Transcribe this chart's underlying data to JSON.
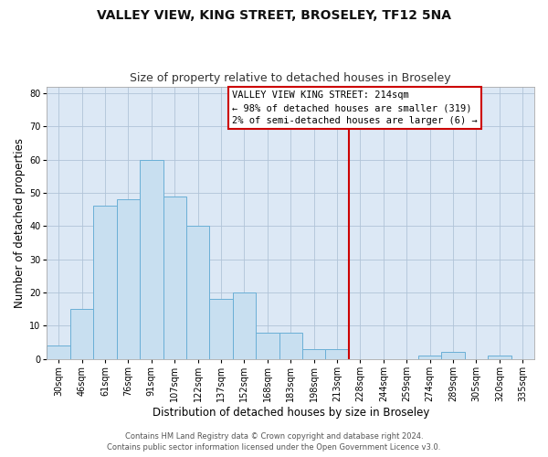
{
  "title": "VALLEY VIEW, KING STREET, BROSELEY, TF12 5NA",
  "subtitle": "Size of property relative to detached houses in Broseley",
  "xlabel": "Distribution of detached houses by size in Broseley",
  "ylabel": "Number of detached properties",
  "footer1": "Contains HM Land Registry data © Crown copyright and database right 2024.",
  "footer2": "Contains public sector information licensed under the Open Government Licence v3.0.",
  "bin_labels": [
    "30sqm",
    "46sqm",
    "61sqm",
    "76sqm",
    "91sqm",
    "107sqm",
    "122sqm",
    "137sqm",
    "152sqm",
    "168sqm",
    "183sqm",
    "198sqm",
    "213sqm",
    "228sqm",
    "244sqm",
    "259sqm",
    "274sqm",
    "289sqm",
    "305sqm",
    "320sqm",
    "335sqm"
  ],
  "bar_heights": [
    4,
    15,
    46,
    48,
    60,
    49,
    40,
    18,
    20,
    8,
    8,
    3,
    3,
    0,
    0,
    0,
    1,
    2,
    0,
    1,
    0
  ],
  "bar_color": "#c8dff0",
  "bar_edge_color": "#6aafd6",
  "vline_x_index": 12,
  "highlight_label": "VALLEY VIEW KING STREET: 214sqm",
  "highlight_line1": "← 98% of detached houses are smaller (319)",
  "highlight_line2": "2% of semi-detached houses are larger (6) →",
  "annotation_box_color": "#ffffff",
  "annotation_box_edge": "#cc0000",
  "ylim": [
    0,
    82
  ],
  "yticks": [
    0,
    10,
    20,
    30,
    40,
    50,
    60,
    70,
    80
  ],
  "bg_color": "#ffffff",
  "plot_bg_color": "#dce8f5",
  "grid_color": "#b0c4d8",
  "vline_color": "#cc0000",
  "title_fontsize": 10,
  "subtitle_fontsize": 9,
  "axis_label_fontsize": 8.5,
  "tick_fontsize": 7,
  "footer_fontsize": 6,
  "annotation_fontsize": 7.5
}
